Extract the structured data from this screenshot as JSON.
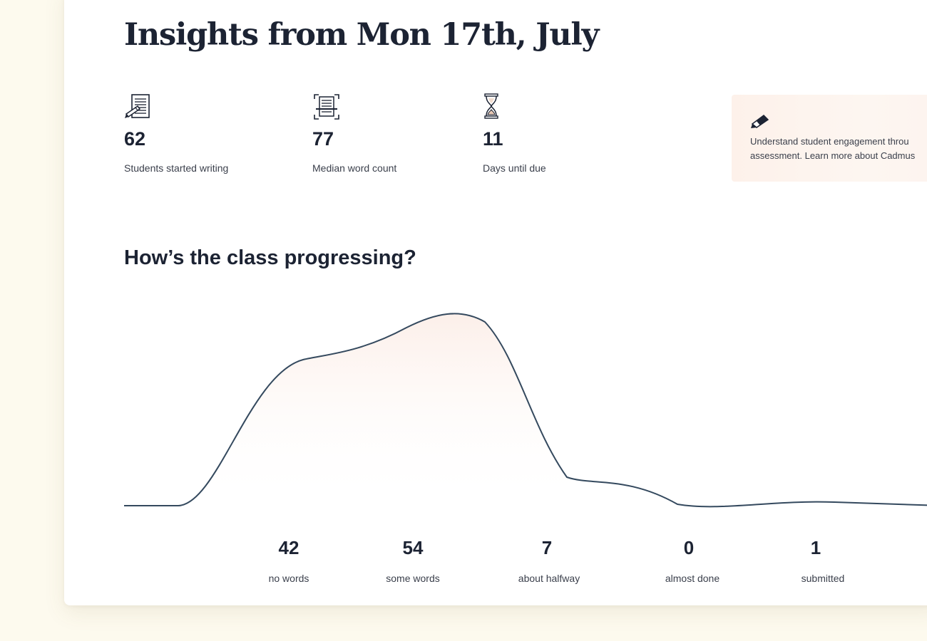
{
  "header": {
    "title": "Insights from Mon 17th, July"
  },
  "stats": [
    {
      "icon": "document-pencil-icon",
      "value": "62",
      "label": "Students started writing"
    },
    {
      "icon": "document-scan-icon",
      "value": "77",
      "label": "Median word count"
    },
    {
      "icon": "hourglass-icon",
      "value": "11",
      "label": "Days until due"
    }
  ],
  "info": {
    "icon": "pencil-icon",
    "line1": "Understand student engagement throu",
    "line2": "assessment. Learn more about Cadmus"
  },
  "progress": {
    "title": "How’s the class progressing?",
    "line_color": "#34495e",
    "fill_color": "#fcefe9"
  },
  "chart_data": {
    "type": "area",
    "categories": [
      "no words",
      "some words",
      "about halfway",
      "almost done",
      "submitted"
    ],
    "values": [
      42,
      54,
      7,
      0,
      1
    ]
  }
}
